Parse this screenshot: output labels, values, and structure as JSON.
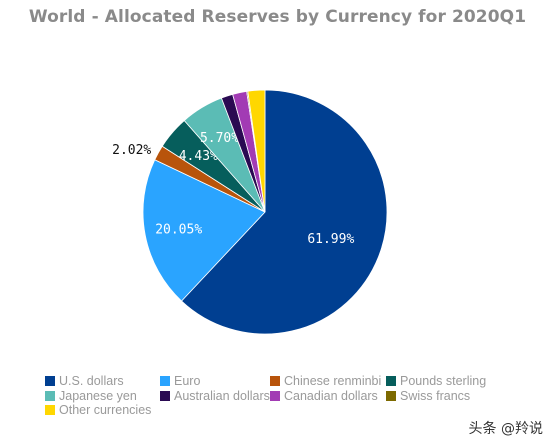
{
  "chart_data": {
    "type": "pie",
    "title": "World - Allocated Reserves by Currency for 2020Q1",
    "start_angle_deg": 0,
    "direction": "clockwise",
    "slices": [
      {
        "name": "U.S. dollars",
        "value": 61.99,
        "label": "61.99%",
        "color": "#003f91",
        "label_pos": "inside"
      },
      {
        "name": "Euro",
        "value": 20.05,
        "label": "20.05%",
        "color": "#2aa4ff",
        "label_pos": "inside"
      },
      {
        "name": "Chinese renminbi",
        "value": 2.02,
        "label": "2.02%",
        "color": "#b8540b",
        "label_pos": "outside"
      },
      {
        "name": "Pounds sterling",
        "value": 4.43,
        "label": "4.43%",
        "color": "#065e5c",
        "label_pos": "inside"
      },
      {
        "name": "Japanese yen",
        "value": 5.7,
        "label": "5.70%",
        "color": "#5bbcb5",
        "label_pos": "inside"
      },
      {
        "name": "Australian dollars",
        "value": 1.54,
        "label": "",
        "color": "#2a0a52",
        "label_pos": "none"
      },
      {
        "name": "Canadian dollars",
        "value": 1.87,
        "label": "",
        "color": "#a23bb4",
        "label_pos": "none"
      },
      {
        "name": "Swiss francs",
        "value": 0.15,
        "label": "",
        "color": "#7d6a00",
        "label_pos": "none"
      },
      {
        "name": "Other currencies",
        "value": 2.25,
        "label": "",
        "color": "#ffd700",
        "label_pos": "none"
      }
    ],
    "legend_position": "bottom"
  },
  "watermark": "头条 @羚说"
}
